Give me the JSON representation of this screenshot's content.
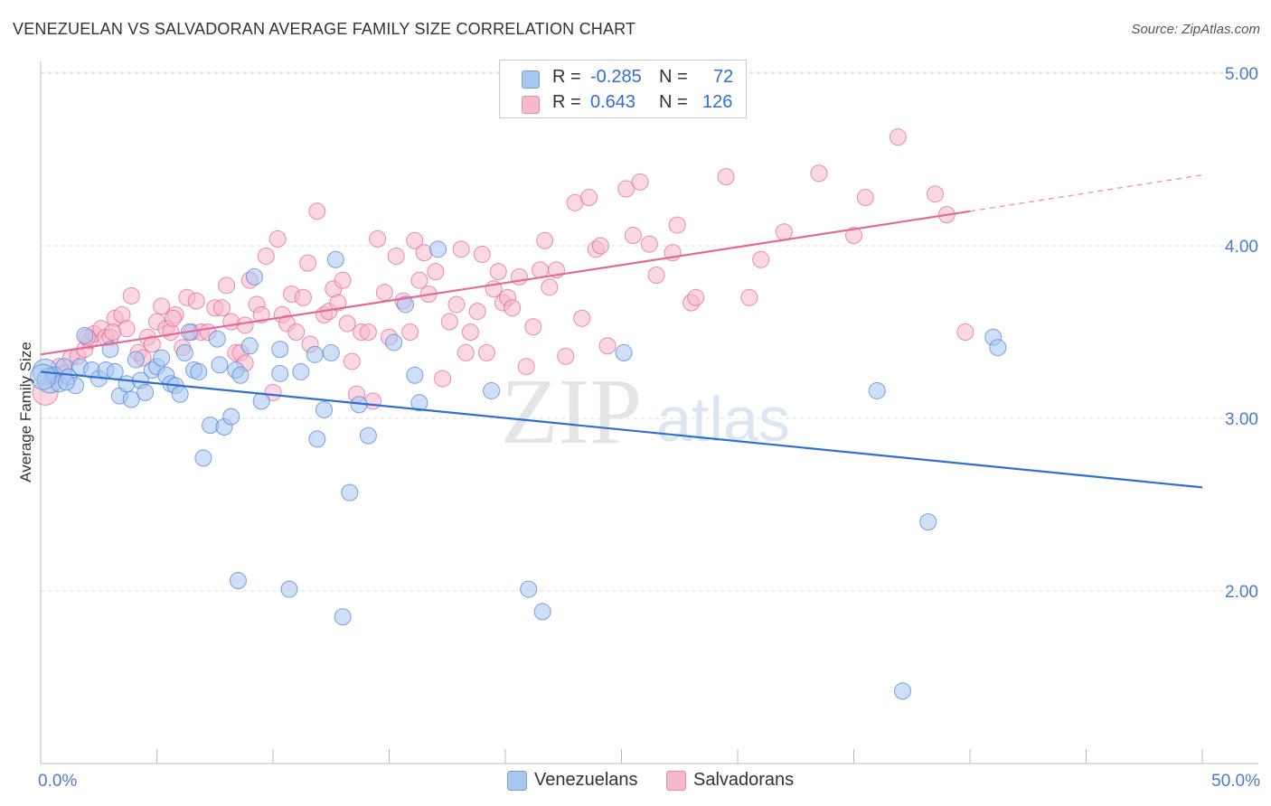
{
  "header": {
    "title": "VENEZUELAN VS SALVADORAN AVERAGE FAMILY SIZE CORRELATION CHART",
    "source": "Source: ZipAtlas.com"
  },
  "watermark": {
    "zip": "ZIP",
    "atlas": "atlas"
  },
  "legend": {
    "rows": [
      {
        "r_label": "R =",
        "r_value": "-0.285",
        "n_label": "N =",
        "n_value": "72",
        "color": "#a8c6ee"
      },
      {
        "r_label": "R =",
        "r_value": "0.643",
        "n_label": "N =",
        "n_value": "126",
        "color": "#f5b8cc"
      }
    ]
  },
  "bottom_legend": [
    {
      "label": "Venezuelans",
      "color": "#a8c6ee"
    },
    {
      "label": "Salvadorans",
      "color": "#f5b8cc"
    }
  ],
  "chart_data": {
    "type": "scatter",
    "title": "VENEZUELAN VS SALVADORAN AVERAGE FAMILY SIZE CORRELATION CHART",
    "xlabel": "",
    "ylabel": "Average Family Size",
    "xlim": [
      0,
      50
    ],
    "ylim": [
      1.0,
      5.1
    ],
    "x_tick_labels": [
      {
        "value": 0,
        "label": "0.0%"
      },
      {
        "value": 50,
        "label": "50.0%"
      }
    ],
    "y_ticks": [
      {
        "value": 2.0,
        "label": "2.00"
      },
      {
        "value": 3.0,
        "label": "3.00"
      },
      {
        "value": 4.0,
        "label": "4.00"
      },
      {
        "value": 5.0,
        "label": "5.00"
      }
    ],
    "grid": true,
    "legend_position": "top-center",
    "series": [
      {
        "name": "Venezuelans",
        "color": "#4f86d9",
        "fill": "#a8c6ee",
        "trend": {
          "x": [
            0,
            50
          ],
          "y": [
            3.27,
            2.6
          ]
        },
        "points": [
          [
            0.2,
            3.27
          ],
          [
            0.4,
            3.22
          ],
          [
            0.6,
            3.25
          ],
          [
            0.8,
            3.2
          ],
          [
            1.0,
            3.3
          ],
          [
            1.2,
            3.24
          ],
          [
            1.5,
            3.19
          ],
          [
            1.7,
            3.3
          ],
          [
            1.9,
            3.48
          ],
          [
            2.2,
            3.28
          ],
          [
            2.5,
            3.23
          ],
          [
            2.8,
            3.28
          ],
          [
            3.0,
            3.4
          ],
          [
            3.2,
            3.27
          ],
          [
            3.4,
            3.13
          ],
          [
            3.7,
            3.2
          ],
          [
            3.9,
            3.11
          ],
          [
            4.1,
            3.34
          ],
          [
            4.3,
            3.22
          ],
          [
            4.5,
            3.15
          ],
          [
            4.8,
            3.28
          ],
          [
            5.0,
            3.3
          ],
          [
            5.2,
            3.35
          ],
          [
            5.4,
            3.25
          ],
          [
            5.6,
            3.2
          ],
          [
            5.8,
            3.19
          ],
          [
            6.0,
            3.14
          ],
          [
            6.2,
            3.38
          ],
          [
            6.4,
            3.5
          ],
          [
            6.6,
            3.28
          ],
          [
            6.8,
            3.27
          ],
          [
            7.0,
            2.77
          ],
          [
            7.3,
            2.96
          ],
          [
            7.6,
            3.46
          ],
          [
            7.7,
            3.31
          ],
          [
            7.9,
            2.95
          ],
          [
            8.2,
            3.01
          ],
          [
            8.4,
            3.28
          ],
          [
            8.6,
            3.25
          ],
          [
            8.5,
            2.06
          ],
          [
            9.0,
            3.42
          ],
          [
            9.2,
            3.82
          ],
          [
            9.5,
            3.1
          ],
          [
            10.3,
            3.4
          ],
          [
            10.3,
            3.26
          ],
          [
            10.7,
            2.01
          ],
          [
            11.2,
            3.27
          ],
          [
            11.8,
            3.37
          ],
          [
            11.9,
            2.88
          ],
          [
            12.2,
            3.05
          ],
          [
            12.5,
            3.38
          ],
          [
            12.7,
            3.92
          ],
          [
            13.0,
            1.85
          ],
          [
            13.3,
            2.57
          ],
          [
            13.7,
            3.08
          ],
          [
            14.1,
            2.9
          ],
          [
            15.2,
            3.44
          ],
          [
            15.7,
            3.66
          ],
          [
            16.1,
            3.25
          ],
          [
            16.3,
            3.09
          ],
          [
            17.1,
            3.98
          ],
          [
            19.4,
            3.16
          ],
          [
            21.0,
            2.01
          ],
          [
            21.6,
            1.88
          ],
          [
            25.1,
            3.38
          ],
          [
            36.0,
            3.16
          ],
          [
            37.1,
            1.42
          ],
          [
            38.2,
            2.4
          ],
          [
            41.0,
            3.47
          ],
          [
            41.2,
            3.41
          ],
          [
            0.1,
            3.24
          ],
          [
            1.1,
            3.21
          ]
        ]
      },
      {
        "name": "Salvadorans",
        "color": "#e36a96",
        "fill": "#f5b8cc",
        "trend": {
          "x": [
            0,
            40
          ],
          "y": [
            3.37,
            4.2
          ],
          "dashed_extension": {
            "x": [
              40,
              50
            ],
            "y": [
              4.2,
              4.41
            ]
          }
        },
        "points": [
          [
            0.2,
            3.15
          ],
          [
            0.5,
            3.25
          ],
          [
            0.8,
            3.3
          ],
          [
            1.0,
            3.26
          ],
          [
            1.3,
            3.35
          ],
          [
            1.6,
            3.36
          ],
          [
            1.9,
            3.4
          ],
          [
            2.1,
            3.45
          ],
          [
            2.3,
            3.49
          ],
          [
            2.6,
            3.52
          ],
          [
            2.8,
            3.47
          ],
          [
            3.0,
            3.47
          ],
          [
            3.2,
            3.58
          ],
          [
            3.5,
            3.6
          ],
          [
            3.7,
            3.52
          ],
          [
            3.9,
            3.71
          ],
          [
            4.2,
            3.38
          ],
          [
            4.4,
            3.35
          ],
          [
            4.6,
            3.47
          ],
          [
            4.8,
            3.43
          ],
          [
            5.0,
            3.56
          ],
          [
            5.2,
            3.65
          ],
          [
            5.4,
            3.52
          ],
          [
            5.6,
            3.5
          ],
          [
            5.8,
            3.6
          ],
          [
            6.1,
            3.41
          ],
          [
            6.3,
            3.7
          ],
          [
            6.5,
            3.5
          ],
          [
            6.7,
            3.68
          ],
          [
            6.9,
            3.5
          ],
          [
            7.2,
            3.5
          ],
          [
            7.5,
            3.64
          ],
          [
            7.8,
            3.64
          ],
          [
            8.0,
            3.77
          ],
          [
            8.2,
            3.56
          ],
          [
            8.4,
            3.38
          ],
          [
            8.6,
            3.38
          ],
          [
            8.8,
            3.32
          ],
          [
            9.0,
            3.8
          ],
          [
            9.3,
            3.66
          ],
          [
            9.5,
            3.6
          ],
          [
            9.7,
            3.94
          ],
          [
            10.0,
            3.15
          ],
          [
            10.2,
            4.04
          ],
          [
            10.4,
            3.6
          ],
          [
            10.6,
            3.55
          ],
          [
            10.8,
            3.72
          ],
          [
            11.0,
            3.5
          ],
          [
            11.3,
            3.7
          ],
          [
            11.6,
            3.43
          ],
          [
            11.9,
            4.2
          ],
          [
            12.2,
            3.6
          ],
          [
            12.4,
            3.62
          ],
          [
            12.6,
            3.75
          ],
          [
            12.8,
            3.67
          ],
          [
            13.0,
            3.8
          ],
          [
            13.2,
            3.55
          ],
          [
            13.4,
            3.33
          ],
          [
            13.6,
            3.14
          ],
          [
            13.8,
            3.5
          ],
          [
            14.1,
            3.5
          ],
          [
            14.3,
            3.1
          ],
          [
            14.5,
            4.04
          ],
          [
            14.8,
            3.73
          ],
          [
            15.0,
            3.47
          ],
          [
            15.3,
            3.94
          ],
          [
            15.6,
            3.68
          ],
          [
            15.9,
            3.5
          ],
          [
            16.1,
            4.03
          ],
          [
            16.3,
            3.8
          ],
          [
            16.5,
            3.96
          ],
          [
            16.7,
            3.72
          ],
          [
            17.0,
            3.85
          ],
          [
            17.3,
            3.23
          ],
          [
            17.6,
            3.56
          ],
          [
            17.9,
            3.66
          ],
          [
            18.1,
            3.98
          ],
          [
            18.3,
            3.38
          ],
          [
            18.5,
            3.5
          ],
          [
            18.8,
            3.62
          ],
          [
            19.0,
            3.95
          ],
          [
            19.2,
            3.38
          ],
          [
            19.5,
            3.75
          ],
          [
            19.7,
            3.85
          ],
          [
            19.9,
            3.67
          ],
          [
            20.1,
            3.7
          ],
          [
            20.3,
            3.64
          ],
          [
            20.6,
            3.82
          ],
          [
            20.9,
            3.3
          ],
          [
            21.2,
            3.53
          ],
          [
            21.5,
            3.86
          ],
          [
            21.7,
            4.03
          ],
          [
            21.9,
            3.76
          ],
          [
            22.2,
            3.86
          ],
          [
            22.6,
            3.36
          ],
          [
            23.0,
            4.25
          ],
          [
            23.3,
            3.58
          ],
          [
            23.6,
            4.28
          ],
          [
            23.9,
            3.98
          ],
          [
            24.1,
            4.0
          ],
          [
            24.4,
            3.42
          ],
          [
            25.2,
            4.33
          ],
          [
            25.5,
            4.06
          ],
          [
            25.8,
            4.37
          ],
          [
            26.2,
            4.01
          ],
          [
            26.5,
            3.83
          ],
          [
            27.2,
            3.96
          ],
          [
            27.4,
            4.12
          ],
          [
            28.0,
            3.67
          ],
          [
            28.2,
            3.7
          ],
          [
            29.5,
            4.4
          ],
          [
            30.5,
            3.7
          ],
          [
            31.0,
            3.92
          ],
          [
            32.0,
            4.08
          ],
          [
            33.5,
            4.42
          ],
          [
            35.0,
            4.06
          ],
          [
            35.5,
            4.28
          ],
          [
            36.9,
            4.63
          ],
          [
            38.5,
            4.3
          ],
          [
            39.0,
            4.18
          ],
          [
            39.8,
            3.5
          ],
          [
            2.0,
            3.47
          ],
          [
            3.1,
            3.5
          ],
          [
            5.7,
            3.58
          ],
          [
            8.8,
            3.54
          ],
          [
            11.5,
            3.9
          ]
        ]
      }
    ]
  }
}
